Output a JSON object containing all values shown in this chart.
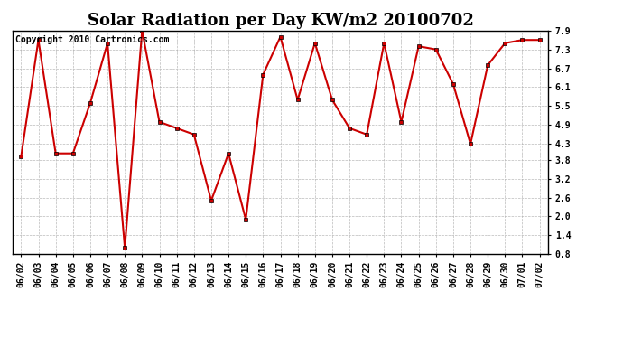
{
  "title": "Solar Radiation per Day KW/m2 20100702",
  "copyright_text": "Copyright 2010 Cartronics.com",
  "dates": [
    "06/02",
    "06/03",
    "06/04",
    "06/05",
    "06/06",
    "06/07",
    "06/08",
    "06/09",
    "06/10",
    "06/11",
    "06/12",
    "06/13",
    "06/14",
    "06/15",
    "06/16",
    "06/17",
    "06/18",
    "06/19",
    "06/20",
    "06/21",
    "06/22",
    "06/23",
    "06/24",
    "06/25",
    "06/26",
    "06/27",
    "06/28",
    "06/29",
    "06/30",
    "07/01",
    "07/02"
  ],
  "values": [
    3.9,
    7.6,
    4.0,
    4.0,
    5.6,
    7.5,
    1.0,
    7.9,
    5.0,
    4.8,
    4.6,
    2.5,
    4.0,
    1.9,
    6.5,
    7.7,
    5.7,
    7.5,
    5.7,
    4.8,
    4.6,
    7.5,
    5.0,
    7.4,
    7.3,
    6.2,
    4.3,
    6.8,
    7.5,
    7.6,
    7.6
  ],
  "ylim": [
    0.8,
    7.9
  ],
  "yticks": [
    0.8,
    1.4,
    2.0,
    2.6,
    3.2,
    3.8,
    4.3,
    4.9,
    5.5,
    6.1,
    6.7,
    7.3,
    7.9
  ],
  "line_color": "#cc0000",
  "marker": "s",
  "marker_size": 2.5,
  "bg_color": "#ffffff",
  "grid_color": "#aaaaaa",
  "title_fontsize": 13,
  "tick_fontsize": 7,
  "copyright_fontsize": 7
}
